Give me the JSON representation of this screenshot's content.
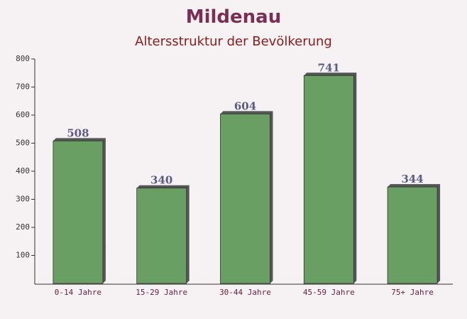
{
  "chart_data": {
    "type": "bar",
    "title": "Mildenau",
    "subtitle": "Altersstruktur der Bevölkerung",
    "categories": [
      "0-14 Jahre",
      "15-29 Jahre",
      "30-44 Jahre",
      "45-59 Jahre",
      "75+ Jahre"
    ],
    "values": [
      508,
      340,
      604,
      741,
      344
    ],
    "color": "#6a9f63",
    "ylim": [
      0,
      800
    ],
    "yticks": [
      100,
      200,
      300,
      400,
      500,
      600,
      700,
      800
    ]
  }
}
